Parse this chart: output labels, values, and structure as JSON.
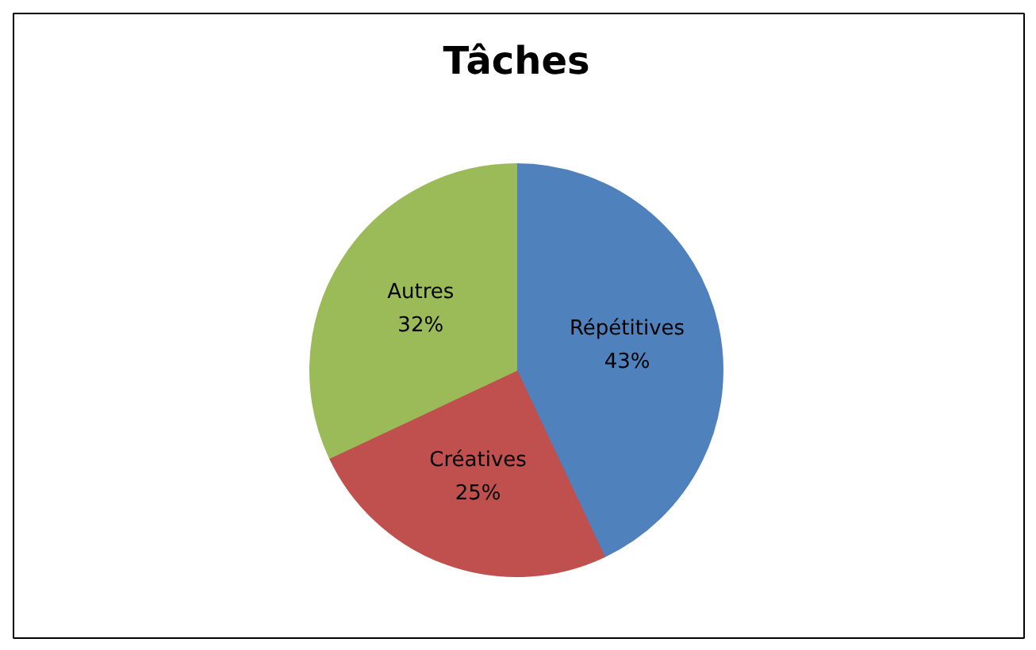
{
  "chart_data": {
    "type": "pie",
    "title": "Tâches",
    "categories": [
      "Répétitives",
      "Créatives",
      "Autres"
    ],
    "values": [
      43,
      25,
      32
    ],
    "colors": [
      "#4f81bd",
      "#c0504d",
      "#9bbb59"
    ],
    "value_labels": [
      "43%",
      "25%",
      "32%"
    ],
    "legend": false
  }
}
